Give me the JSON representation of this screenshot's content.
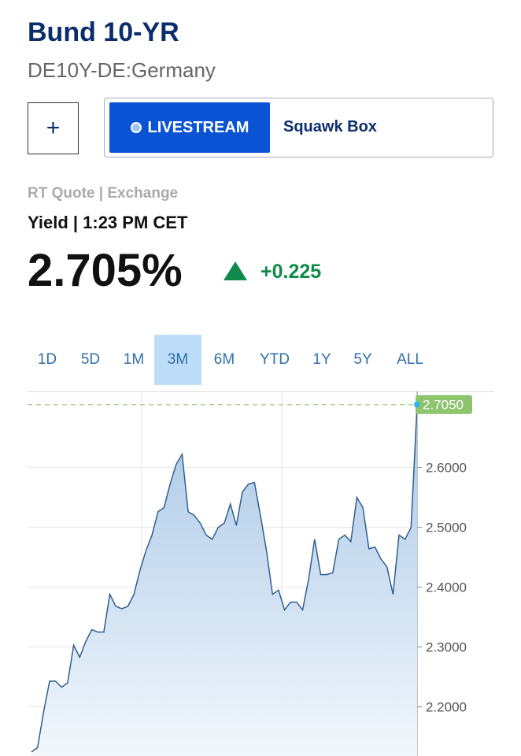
{
  "header": {
    "title": "Bund 10-YR",
    "symbol": "DE10Y-DE:Germany"
  },
  "buttons": {
    "add": "+",
    "livestream": "LIVESTREAM",
    "show": "Squawk Box"
  },
  "quote": {
    "source": "RT Quote | Exchange",
    "label": "Yield | 1:23 PM CET",
    "price": "2.705%",
    "change": "+0.225"
  },
  "tabs": {
    "items": [
      "1D",
      "5D",
      "1M",
      "3M",
      "6M",
      "YTD",
      "1Y",
      "5Y",
      "ALL"
    ],
    "selected": "3M"
  },
  "chart_data": {
    "type": "line",
    "color": "#2f5f8f",
    "values": [
      2.125,
      2.132,
      2.191,
      2.243,
      2.243,
      2.233,
      2.24,
      2.303,
      2.283,
      2.309,
      2.329,
      2.325,
      2.325,
      2.388,
      2.368,
      2.364,
      2.368,
      2.388,
      2.428,
      2.461,
      2.487,
      2.526,
      2.533,
      2.572,
      2.605,
      2.622,
      2.526,
      2.52,
      2.507,
      2.487,
      2.48,
      2.5,
      2.507,
      2.539,
      2.503,
      2.559,
      2.572,
      2.575,
      2.52,
      2.461,
      2.388,
      2.395,
      2.362,
      2.375,
      2.375,
      2.362,
      2.414,
      2.48,
      2.421,
      2.421,
      2.424,
      2.48,
      2.487,
      2.476,
      2.55,
      2.533,
      2.464,
      2.467,
      2.447,
      2.434,
      2.388,
      2.487,
      2.48,
      2.5,
      2.705
    ],
    "ylim": [
      2.118,
      2.727
    ],
    "yticks": [
      {
        "value": 2.2,
        "label": "2.2000"
      },
      {
        "value": 2.3,
        "label": "2.3000"
      },
      {
        "value": 2.4,
        "label": "2.4000"
      },
      {
        "value": 2.5,
        "label": "2.5000"
      },
      {
        "value": 2.6,
        "label": "2.6000"
      }
    ],
    "last_value": {
      "value": 2.705,
      "label": "2.7050"
    },
    "grid": true
  }
}
